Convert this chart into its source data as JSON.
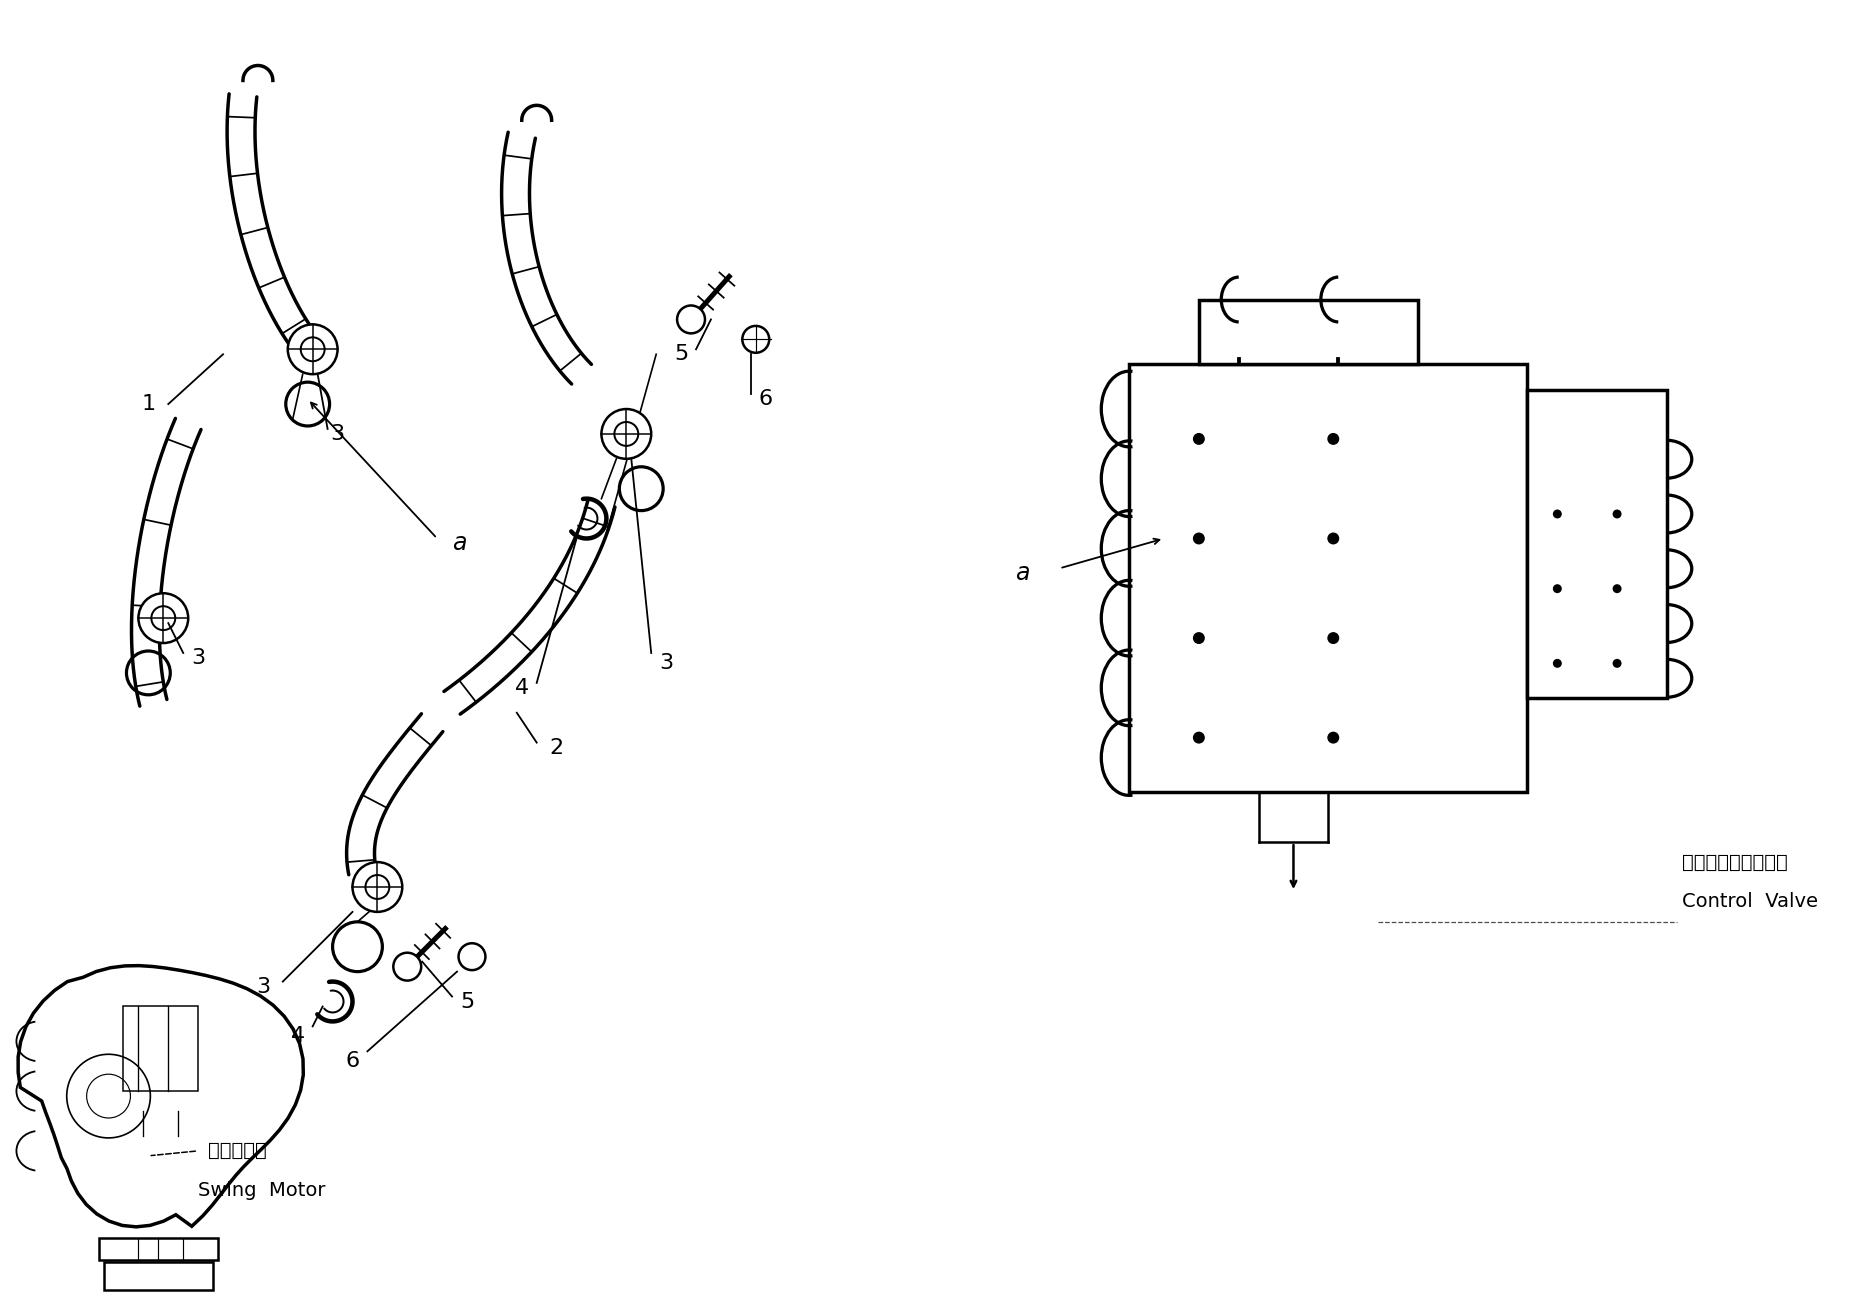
{
  "background_color": "#ffffff",
  "line_color": "#000000",
  "figsize": [
    18.7,
    13.03
  ],
  "dpi": 100,
  "swing_motor_ja": "旋回モータ",
  "swing_motor_en": "Swing  Motor",
  "control_valve_ja": "コントロールバルブ",
  "control_valve_en": "Control  Valve",
  "label_fontsize": 15
}
